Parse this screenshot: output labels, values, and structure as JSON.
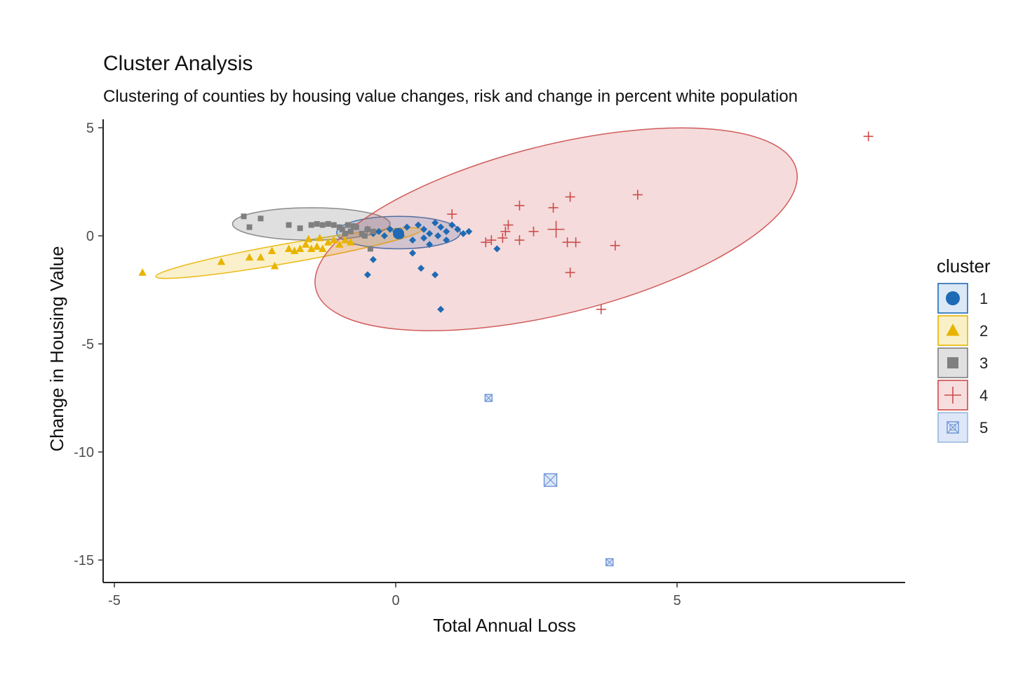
{
  "chart_data": {
    "type": "scatter",
    "title": "Cluster Analysis",
    "subtitle": "Clustering of counties by housing value changes, risk and change in percent white population",
    "xlabel": "Total Annual Loss",
    "ylabel": "Change in Housing Value",
    "xlim": [
      -5.2,
      9.0
    ],
    "ylim": [
      -16.0,
      5.5
    ],
    "x_ticks": [
      -5,
      0,
      5
    ],
    "y_ticks": [
      5,
      0,
      -5,
      -10,
      -15
    ],
    "grid": false,
    "legend": {
      "title": "cluster",
      "position": "right"
    },
    "series": [
      {
        "name": "1",
        "shape": "diamond",
        "color": "#1f6ab5",
        "fill": "#1f6ab5",
        "center": {
          "x": 0.05,
          "y": 0.1
        },
        "ellipse": {
          "cx": 0.05,
          "cy": 0.15,
          "rx": 1.1,
          "ry": 0.75,
          "angle": 0
        },
        "points": [
          {
            "x": -0.5,
            "y": 0.3
          },
          {
            "x": -0.4,
            "y": 0.1
          },
          {
            "x": -0.3,
            "y": 0.2
          },
          {
            "x": -0.2,
            "y": 0.0
          },
          {
            "x": -0.1,
            "y": 0.3
          },
          {
            "x": 0.0,
            "y": 0.2
          },
          {
            "x": 0.1,
            "y": 0.0
          },
          {
            "x": 0.2,
            "y": 0.4
          },
          {
            "x": 0.3,
            "y": -0.2
          },
          {
            "x": 0.4,
            "y": 0.5
          },
          {
            "x": 0.5,
            "y": 0.3
          },
          {
            "x": 0.6,
            "y": 0.1
          },
          {
            "x": 0.7,
            "y": 0.6
          },
          {
            "x": 0.75,
            "y": 0.0
          },
          {
            "x": 0.8,
            "y": 0.4
          },
          {
            "x": 0.9,
            "y": 0.2
          },
          {
            "x": 1.0,
            "y": 0.5
          },
          {
            "x": 1.1,
            "y": 0.3
          },
          {
            "x": 1.2,
            "y": 0.1
          },
          {
            "x": 1.3,
            "y": 0.2
          },
          {
            "x": 0.6,
            "y": -0.4
          },
          {
            "x": 0.3,
            "y": -0.8
          },
          {
            "x": -0.4,
            "y": -1.1
          },
          {
            "x": -0.5,
            "y": -1.8
          },
          {
            "x": 0.45,
            "y": -1.5
          },
          {
            "x": 0.7,
            "y": -1.8
          },
          {
            "x": 0.8,
            "y": -3.4
          },
          {
            "x": 1.8,
            "y": -0.6
          },
          {
            "x": 0.5,
            "y": -0.1
          },
          {
            "x": 0.9,
            "y": -0.2
          }
        ]
      },
      {
        "name": "2",
        "shape": "triangle",
        "color": "#e8b400",
        "fill": "#e8b400",
        "ellipse": {
          "cx": -1.9,
          "cy": -0.8,
          "rx": 2.4,
          "ry": 0.45,
          "angle": -10
        },
        "points": [
          {
            "x": -4.5,
            "y": -1.7
          },
          {
            "x": -3.1,
            "y": -1.2
          },
          {
            "x": -2.6,
            "y": -1.0
          },
          {
            "x": -2.4,
            "y": -1.0
          },
          {
            "x": -2.2,
            "y": -0.7
          },
          {
            "x": -2.15,
            "y": -1.4
          },
          {
            "x": -1.9,
            "y": -0.6
          },
          {
            "x": -1.8,
            "y": -0.7
          },
          {
            "x": -1.7,
            "y": -0.6
          },
          {
            "x": -1.6,
            "y": -0.4
          },
          {
            "x": -1.5,
            "y": -0.6
          },
          {
            "x": -1.4,
            "y": -0.5
          },
          {
            "x": -1.3,
            "y": -0.6
          },
          {
            "x": -1.2,
            "y": -0.3
          },
          {
            "x": -1.1,
            "y": -0.2
          },
          {
            "x": -1.0,
            "y": -0.4
          },
          {
            "x": -0.9,
            "y": -0.2
          },
          {
            "x": -0.8,
            "y": -0.3
          },
          {
            "x": -1.55,
            "y": -0.15
          },
          {
            "x": -1.35,
            "y": -0.1
          }
        ]
      },
      {
        "name": "3",
        "shape": "square",
        "color": "#7f7f7f",
        "fill": "#7f7f7f",
        "ellipse": {
          "cx": -1.5,
          "cy": 0.55,
          "rx": 1.4,
          "ry": 0.75,
          "angle": 0
        },
        "points": [
          {
            "x": -2.7,
            "y": 0.9
          },
          {
            "x": -2.6,
            "y": 0.4
          },
          {
            "x": -2.4,
            "y": 0.8
          },
          {
            "x": -1.9,
            "y": 0.5
          },
          {
            "x": -1.5,
            "y": 0.5
          },
          {
            "x": -1.4,
            "y": 0.55
          },
          {
            "x": -1.3,
            "y": 0.5
          },
          {
            "x": -1.2,
            "y": 0.55
          },
          {
            "x": -1.1,
            "y": 0.5
          },
          {
            "x": -1.0,
            "y": 0.4
          },
          {
            "x": -0.95,
            "y": 0.3
          },
          {
            "x": -0.85,
            "y": 0.5
          },
          {
            "x": -0.8,
            "y": 0.2
          },
          {
            "x": -0.7,
            "y": 0.4
          },
          {
            "x": -0.6,
            "y": 0.1
          },
          {
            "x": -0.5,
            "y": 0.3
          },
          {
            "x": -0.4,
            "y": 0.2
          },
          {
            "x": -0.9,
            "y": 0.1
          },
          {
            "x": -0.75,
            "y": 0.45
          },
          {
            "x": -0.45,
            "y": -0.6
          },
          {
            "x": -0.55,
            "y": 0.0
          },
          {
            "x": -1.7,
            "y": 0.35
          }
        ]
      },
      {
        "name": "4",
        "shape": "plus",
        "color": "#cc4b4b",
        "fill": "#cc4b4b",
        "ellipse": {
          "cx": 2.85,
          "cy": 0.3,
          "rx": 4.4,
          "ry": 3.9,
          "angle": 0,
          "tilt": -14
        },
        "points": [
          {
            "x": 1.0,
            "y": 1.0
          },
          {
            "x": 1.6,
            "y": -0.3
          },
          {
            "x": 1.7,
            "y": -0.2
          },
          {
            "x": 1.9,
            "y": -0.1
          },
          {
            "x": 1.95,
            "y": 0.2
          },
          {
            "x": 2.0,
            "y": 0.5
          },
          {
            "x": 2.2,
            "y": 1.4
          },
          {
            "x": 2.2,
            "y": -0.2
          },
          {
            "x": 2.45,
            "y": 0.2
          },
          {
            "x": 2.8,
            "y": 1.3
          },
          {
            "x": 2.85,
            "y": 0.3
          },
          {
            "x": 3.1,
            "y": 1.8
          },
          {
            "x": 3.05,
            "y": -0.3
          },
          {
            "x": 3.2,
            "y": -0.3
          },
          {
            "x": 3.1,
            "y": -1.7
          },
          {
            "x": 3.9,
            "y": -0.45
          },
          {
            "x": 3.65,
            "y": -3.4
          },
          {
            "x": 4.3,
            "y": 1.9
          },
          {
            "x": 8.4,
            "y": 4.6
          }
        ]
      },
      {
        "name": "5",
        "shape": "boxcross",
        "color": "#6b93d6",
        "fill": "#dde7f7",
        "points": [
          {
            "x": 1.65,
            "y": -7.5
          },
          {
            "x": 2.75,
            "y": -11.3
          },
          {
            "x": 3.8,
            "y": -15.1
          }
        ]
      }
    ]
  }
}
